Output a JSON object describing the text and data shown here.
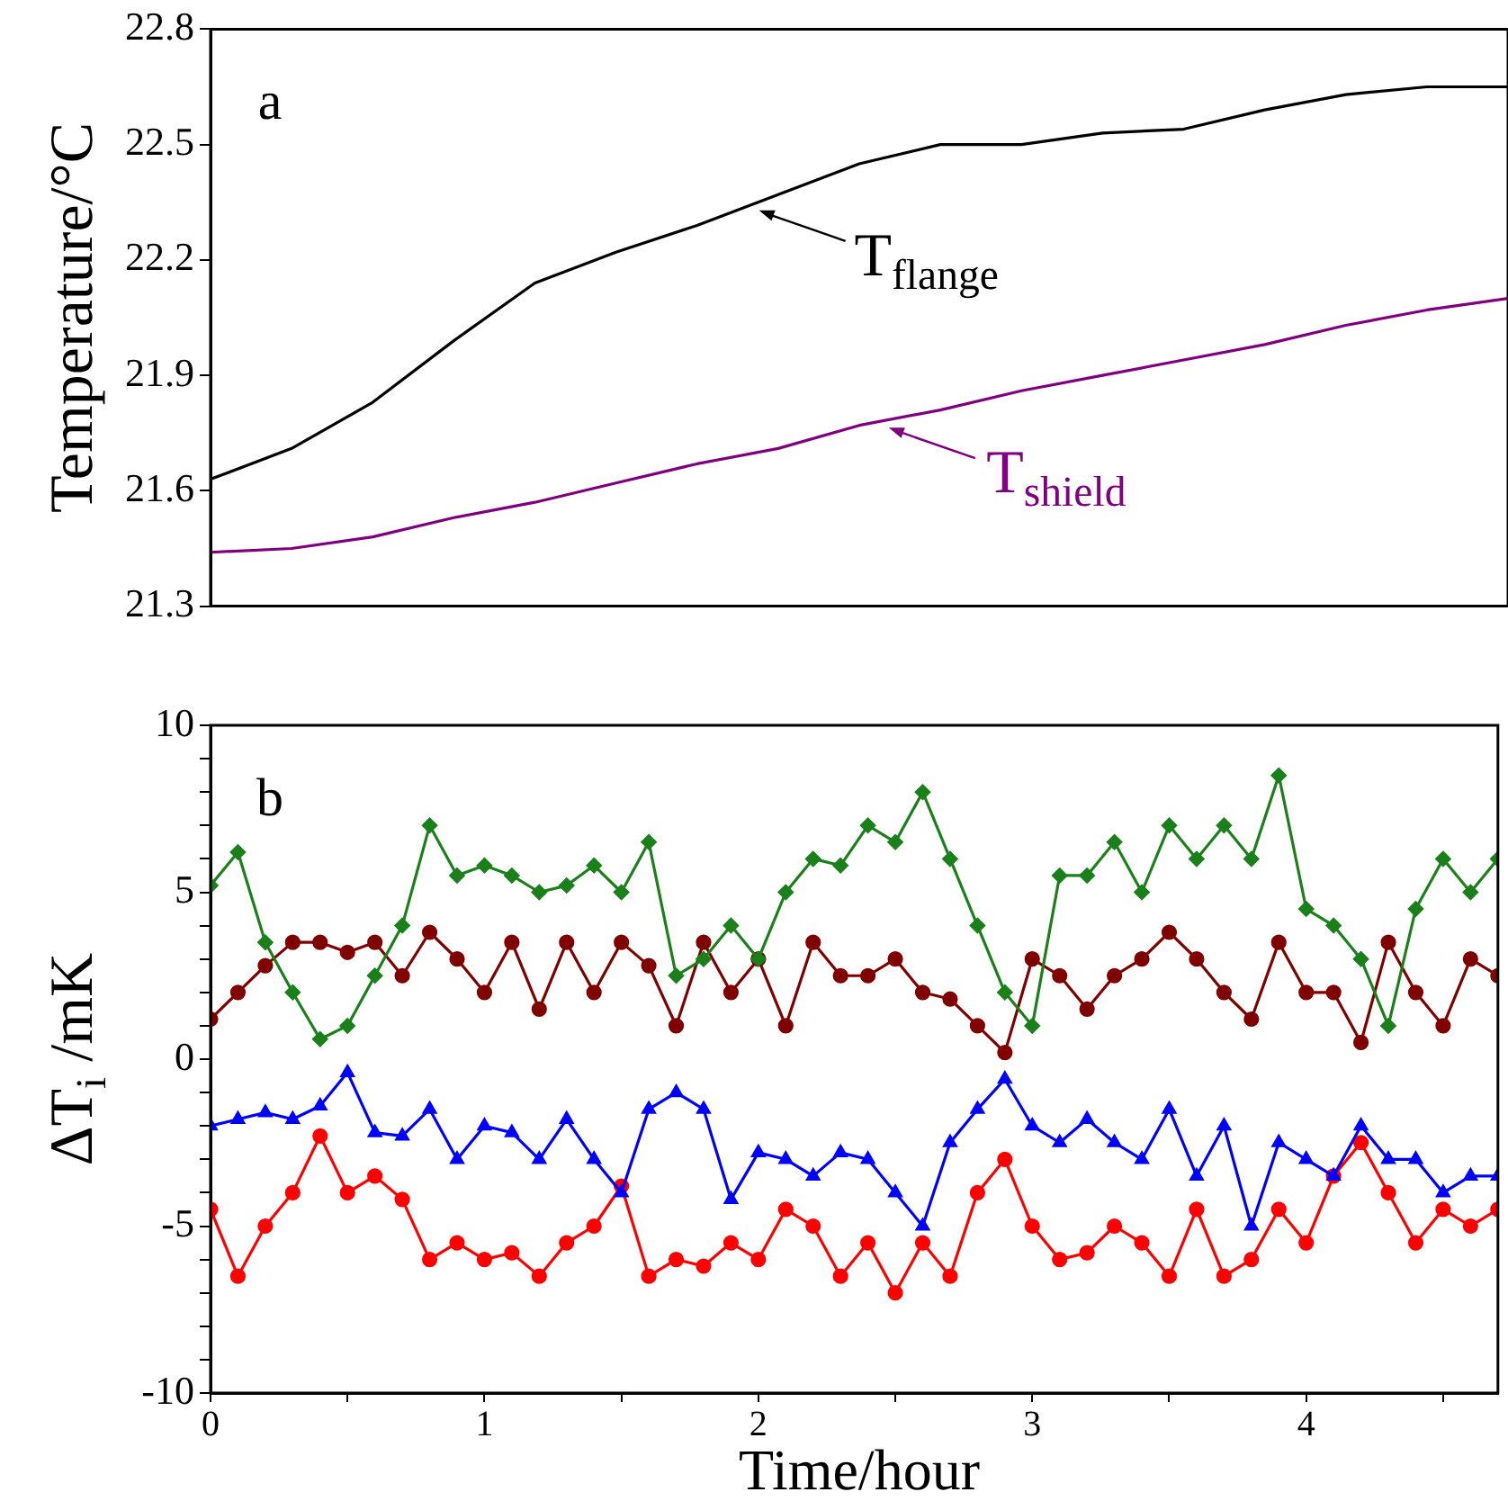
{
  "chart_data": [
    {
      "type": "line",
      "ylabel": "Temperature/°C",
      "ylim": [
        21.3,
        22.8
      ],
      "yticks": [
        21.3,
        21.6,
        21.9,
        22.2,
        22.5,
        22.8
      ],
      "tick_labels": "y",
      "grid": false,
      "legend": false,
      "marker": "none",
      "line_style": "solid",
      "categories": [
        null,
        null,
        null,
        null,
        null,
        null,
        null,
        null,
        null,
        null,
        null,
        null,
        null,
        null,
        null,
        null,
        null
      ],
      "series": [
        {
          "color": "#000000",
          "values": [
            21.63,
            21.71,
            21.83,
            21.99,
            22.14,
            22.22,
            22.29,
            22.37,
            22.45,
            22.5,
            22.5,
            22.53,
            22.54,
            22.59,
            22.63,
            22.65,
            22.65
          ]
        },
        {
          "color": "#800080",
          "values": [
            21.44,
            21.45,
            21.48,
            21.53,
            21.57,
            21.62,
            21.67,
            21.71,
            21.77,
            21.81,
            21.86,
            21.9,
            21.94,
            21.98,
            22.03,
            22.07,
            22.1
          ]
        }
      ],
      "annotations": [
        "a",
        "T$_{flange}$",
        "T$_{shield}$"
      ]
    },
    {
      "type": "line",
      "xlabel": "Time/hour",
      "ylabel": "ΔT$_{i}$ /mK",
      "xlim": [
        0,
        4.7
      ],
      "ylim": [
        -10,
        10
      ],
      "xticks": [
        0,
        {
          "value": 0.5,
          "label": null
        },
        1,
        {
          "value": 1.5,
          "label": null
        },
        2,
        {
          "value": 2.5,
          "label": null
        },
        3,
        {
          "value": 3.5,
          "label": null
        },
        4,
        {
          "value": 4.5,
          "label": null
        }
      ],
      "yticks": [
        -10,
        {
          "value": -9,
          "label": null
        },
        {
          "value": -8,
          "label": null
        },
        {
          "value": -7,
          "label": null
        },
        {
          "value": -6,
          "label": null
        },
        -5,
        {
          "value": -4,
          "label": null
        },
        {
          "value": -3,
          "label": null
        },
        {
          "value": -2,
          "label": null
        },
        {
          "value": -1,
          "label": null
        },
        0,
        {
          "value": 1,
          "label": null
        },
        {
          "value": 2,
          "label": null
        },
        {
          "value": 3,
          "label": null
        },
        {
          "value": 4,
          "label": null
        },
        5,
        {
          "value": 6,
          "label": null
        },
        {
          "value": 7,
          "label": null
        },
        {
          "value": 8,
          "label": null
        },
        {
          "value": 9,
          "label": null
        },
        10
      ],
      "grid": false,
      "legend": false,
      "line_style": "solid",
      "x": [
        0,
        0.1,
        0.2,
        0.3,
        0.4,
        0.5,
        0.6,
        0.7,
        0.8,
        0.9,
        1,
        1.1,
        1.2,
        1.3,
        1.4,
        1.5,
        1.6,
        1.7,
        1.8,
        1.9,
        2,
        2.1,
        2.2,
        2.3,
        2.4,
        2.5,
        2.6,
        2.7,
        2.8,
        2.9,
        3,
        3.1,
        3.2,
        3.3,
        3.4,
        3.5,
        3.6,
        3.7,
        3.8,
        3.9,
        4,
        4.1,
        4.2,
        4.3,
        4.4,
        4.5,
        4.6,
        4.7
      ],
      "series": [
        {
          "color": "#1a801a",
          "marker": "diamond",
          "values": [
            5.2,
            6.2,
            3.5,
            2,
            0.6,
            1,
            2.5,
            4,
            7,
            5.5,
            5.8,
            5.5,
            5,
            5.2,
            5.8,
            5,
            6.5,
            2.5,
            3,
            4,
            3,
            5,
            6,
            5.8,
            7,
            6.5,
            8,
            6,
            4,
            2,
            1,
            5.5,
            5.5,
            6.5,
            5,
            7,
            6,
            7,
            6,
            8.5,
            4.5,
            4,
            3,
            1,
            4.5,
            6,
            5,
            6
          ]
        },
        {
          "color": "#800000",
          "marker": "circle",
          "values": [
            1.2,
            2,
            2.8,
            3.5,
            3.5,
            3.2,
            3.5,
            2.5,
            3.8,
            3,
            2,
            3.5,
            1.5,
            3.5,
            2,
            3.5,
            2.8,
            1,
            3.5,
            2,
            3,
            1,
            3.5,
            2.5,
            2.5,
            3,
            2,
            1.8,
            1,
            0.2,
            3,
            2.5,
            1.5,
            2.5,
            3,
            3.8,
            3,
            2,
            1.2,
            3.5,
            2,
            2,
            0.5,
            3.5,
            2,
            1,
            3,
            2.5
          ]
        },
        {
          "color": "#0000ff",
          "marker": "triangle",
          "values": [
            -2,
            -1.8,
            -1.6,
            -1.8,
            -1.4,
            -0.4,
            -2.2,
            -2.3,
            -1.5,
            -3,
            -2,
            -2.2,
            -3,
            -1.8,
            -3,
            -4,
            -1.5,
            -1,
            -1.5,
            -4.2,
            -2.8,
            -3,
            -3.5,
            -2.8,
            -3,
            -4,
            -5,
            -2.5,
            -1.5,
            -0.6,
            -2,
            -2.5,
            -1.8,
            -2.5,
            -3,
            -1.5,
            -3.5,
            -2,
            -5,
            -2.5,
            -3,
            -3.5,
            -2,
            -3,
            -3,
            -4,
            -3.5,
            -3.5
          ]
        },
        {
          "color": "#ff0000",
          "marker": "circle",
          "values": [
            -4.5,
            -6.5,
            -5,
            -4,
            -2.3,
            -4,
            -3.5,
            -4.2,
            -6,
            -5.5,
            -6,
            -5.8,
            -6.5,
            -5.5,
            -5,
            -3.8,
            -6.5,
            -6,
            -6.2,
            -5.5,
            -6,
            -4.5,
            -5,
            -6.5,
            -5.5,
            -7,
            -5.5,
            -6.5,
            -4,
            -3,
            -5,
            -6,
            -5.8,
            -5,
            -5.5,
            -6.5,
            -4.5,
            -6.5,
            -6,
            -4.5,
            -5.5,
            -3.5,
            -2.5,
            -4,
            -5.5,
            -4.5,
            -5,
            -4.5
          ]
        }
      ],
      "annotations": [
        "b"
      ]
    }
  ]
}
